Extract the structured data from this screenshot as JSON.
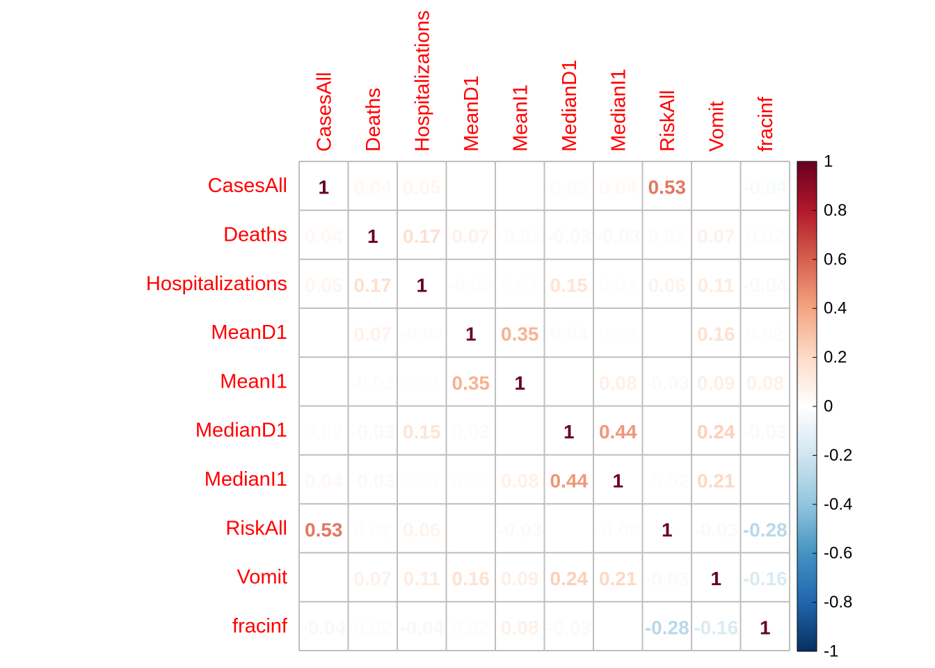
{
  "chart_data": {
    "type": "heatmap",
    "variables": [
      "CasesAll",
      "Deaths",
      "Hospitalizations",
      "MeanD1",
      "MeanI1",
      "MedianD1",
      "MedianI1",
      "RiskAll",
      "Vomit",
      "fracinf"
    ],
    "matrix": [
      [
        1,
        0.04,
        0.05,
        0.0,
        0.0,
        0.02,
        0.04,
        0.53,
        0.0,
        -0.04
      ],
      [
        0.04,
        1,
        0.17,
        0.07,
        -0.02,
        -0.03,
        -0.03,
        0.02,
        0.07,
        0.02
      ],
      [
        0.05,
        0.17,
        1,
        -0.02,
        0.01,
        0.15,
        0.01,
        0.06,
        0.11,
        -0.04
      ],
      [
        0.0,
        0.07,
        -0.02,
        1,
        0.35,
        0.03,
        0.01,
        0.0,
        0.16,
        0.02
      ],
      [
        0.0,
        -0.02,
        0.01,
        0.35,
        1,
        0.0,
        0.08,
        -0.03,
        0.09,
        0.08
      ],
      [
        0.02,
        -0.03,
        0.15,
        0.03,
        0.0,
        1,
        0.44,
        0.0,
        0.24,
        -0.03
      ],
      [
        0.04,
        -0.03,
        0.01,
        0.01,
        0.08,
        0.44,
        1,
        -0.02,
        0.21,
        0.0
      ],
      [
        0.53,
        0.02,
        0.06,
        0.0,
        -0.03,
        0.0,
        -0.02,
        1,
        -0.03,
        -0.28
      ],
      [
        0.0,
        0.07,
        0.11,
        0.16,
        0.09,
        0.24,
        0.21,
        -0.03,
        1,
        -0.16
      ],
      [
        -0.04,
        0.02,
        -0.04,
        0.02,
        0.08,
        -0.03,
        0.0,
        -0.28,
        -0.16,
        1
      ]
    ],
    "color_scale": {
      "range": [
        -1,
        1
      ],
      "ticks": [
        "1",
        "0.8",
        "0.6",
        "0.4",
        "0.2",
        "0",
        "-0.2",
        "-0.4",
        "-0.6",
        "-0.8",
        "-1"
      ],
      "colors": [
        "#67001F",
        "#B2182B",
        "#D6604D",
        "#F4A582",
        "#FDDBC7",
        "#FFFFFF",
        "#D1E5F0",
        "#92C5DE",
        "#4393C3",
        "#2166AC",
        "#053061"
      ]
    },
    "label_color": "#FF0000",
    "grid_color": "#BEBEBE",
    "legend_position": "right"
  }
}
